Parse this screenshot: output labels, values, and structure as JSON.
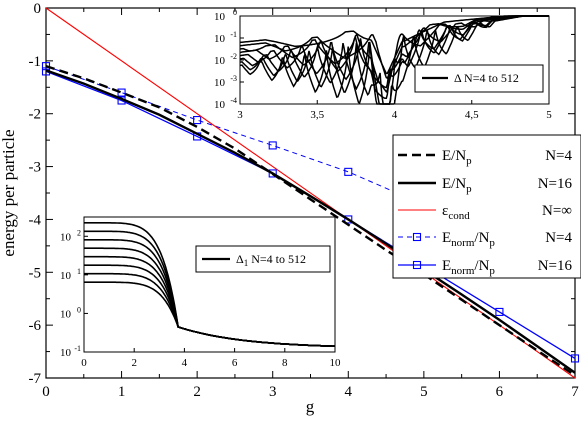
{
  "chart_data": {
    "type": "line",
    "xlabel": "g",
    "ylabel": "energy per particle",
    "xlim": [
      0,
      7
    ],
    "ylim": [
      -7,
      0
    ],
    "xticks": [
      "0",
      "1",
      "2",
      "3",
      "4",
      "5",
      "6",
      "7"
    ],
    "yticks": [
      "0",
      "-1",
      "-2",
      "-3",
      "-4",
      "-5",
      "-6",
      "-7"
    ],
    "legend_position": "right",
    "series": [
      {
        "key": "e4",
        "legend_main": "E/N",
        "legend_sub": "p",
        "legend_tail": "N=4",
        "style": "dashed",
        "color": "#000000",
        "x": [
          0,
          0.5,
          1,
          1.5,
          2,
          2.5,
          3,
          3.5,
          4,
          4.5,
          5,
          5.5,
          6,
          6.5,
          7
        ],
        "y": [
          -1.1,
          -1.33,
          -1.6,
          -1.88,
          -2.25,
          -2.66,
          -3.14,
          -3.62,
          -4.1,
          -4.58,
          -5.04,
          -5.52,
          -6.0,
          -6.48,
          -6.95
        ]
      },
      {
        "key": "e16",
        "legend_main": "E/N",
        "legend_sub": "p",
        "legend_tail": "N=16",
        "style": "solid",
        "color": "#000000",
        "x": [
          0,
          0.5,
          1,
          1.5,
          2,
          2.5,
          3,
          3.5,
          4,
          4.5,
          5,
          5.5,
          6,
          6.5,
          7
        ],
        "y": [
          -1.18,
          -1.43,
          -1.72,
          -2.02,
          -2.38,
          -2.74,
          -3.13,
          -3.56,
          -4.0,
          -4.46,
          -4.95,
          -5.42,
          -5.9,
          -6.4,
          -6.9
        ]
      },
      {
        "key": "econd",
        "legend_main": "ε",
        "legend_sub": "cond",
        "legend_tail": "N=∞",
        "style": "solid",
        "color": "#ff0000",
        "x": [
          0,
          7
        ],
        "y": [
          0,
          -7
        ]
      },
      {
        "key": "enorm4",
        "legend_main": "E",
        "legend_sub": "norm",
        "legend_tail": "/N",
        "legend_sub2": "p",
        "legend_tail2": "N=4",
        "style": "dashed-square",
        "color": "#0000ff",
        "x": [
          0,
          1,
          2,
          3,
          4,
          7
        ],
        "y": [
          -1.1,
          -1.6,
          -2.12,
          -2.6,
          -3.1,
          -4.96
        ]
      },
      {
        "key": "enorm16",
        "legend_main": "E",
        "legend_sub": "norm",
        "legend_tail": "/N",
        "legend_sub2": "p",
        "legend_tail2": "N=16",
        "style": "solid-square",
        "color": "#0000ff",
        "x": [
          0,
          1,
          2,
          3,
          4,
          6,
          7
        ],
        "y": [
          -1.2,
          -1.75,
          -2.43,
          -3.13,
          -4.0,
          -5.75,
          -6.63
        ]
      }
    ],
    "insets": [
      {
        "key": "inset1",
        "type": "line",
        "xlim": [
          3,
          5
        ],
        "ylim_log10": [
          -4,
          0
        ],
        "yscale": "log",
        "xticks": [
          "3",
          "3,5",
          "4",
          "4,5",
          "5"
        ],
        "ytick_exponents": [
          "0",
          "-1",
          "-2",
          "-3",
          "-4"
        ],
        "ytick_base": "10",
        "legend_main": "Δ",
        "legend_tail": "N=4 to 512",
        "legend_position": "lower-right"
      },
      {
        "key": "inset2",
        "type": "line",
        "xlim": [
          0,
          10
        ],
        "ylim_log10": [
          -1,
          2.5
        ],
        "yscale": "log",
        "xticks": [
          "0",
          "2",
          "4",
          "6",
          "8",
          "10"
        ],
        "ytick_exponents": [
          "2",
          "1",
          "0",
          "-1"
        ],
        "ytick_base": "10",
        "legend_main": "Δ",
        "legend_sub": "1",
        "legend_tail": "N=4 to 512",
        "legend_position": "upper-right"
      }
    ]
  }
}
